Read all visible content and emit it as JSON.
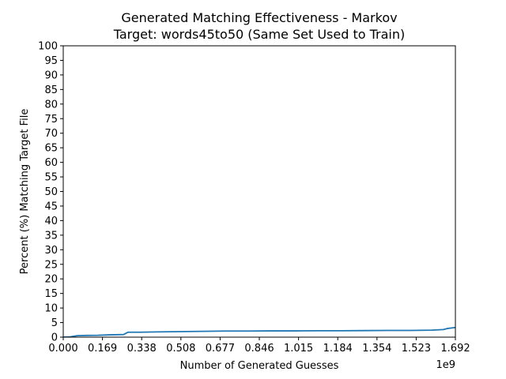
{
  "chart_data": {
    "type": "line",
    "title": "Generated Matching Effectiveness - Markov",
    "subtitle": "Target: words45to50 (Same Set Used to Train)",
    "xlabel": "Number of Generated Guesses",
    "ylabel": "Percent (%) Matching Target File",
    "x_offset_label": "1e9",
    "xlim": [
      0,
      1692000000
    ],
    "ylim": [
      0,
      100
    ],
    "x_tick_values": [
      0,
      169200000,
      338400000,
      507600000,
      676800000,
      846000000,
      1015200000,
      1184400000,
      1353600000,
      1522800000,
      1692000000
    ],
    "x_tick_labels": [
      "0.000",
      "0.169",
      "0.338",
      "0.508",
      "0.677",
      "0.846",
      "1.015",
      "1.184",
      "1.354",
      "1.523",
      "1.692"
    ],
    "y_tick_values": [
      0,
      5,
      10,
      15,
      20,
      25,
      30,
      35,
      40,
      45,
      50,
      55,
      60,
      65,
      70,
      75,
      80,
      85,
      90,
      95,
      100
    ],
    "y_tick_labels": [
      "0",
      "5",
      "10",
      "15",
      "20",
      "25",
      "30",
      "35",
      "40",
      "45",
      "50",
      "55",
      "60",
      "65",
      "70",
      "75",
      "80",
      "85",
      "90",
      "95",
      "100"
    ],
    "grid": false,
    "series": [
      {
        "color": "#1f77b4",
        "x": [
          0,
          30000000,
          60000000,
          100000000,
          150000000,
          200000000,
          260000000,
          280000000,
          330000000,
          400000000,
          500000000,
          600000000,
          700000000,
          800000000,
          900000000,
          1000000000,
          1100000000,
          1200000000,
          1300000000,
          1400000000,
          1500000000,
          1590000000,
          1640000000,
          1660000000,
          1700000000,
          1740000000,
          1760000000,
          1770000000
        ],
        "y": [
          0,
          0.1,
          0.5,
          0.6,
          0.65,
          0.8,
          0.9,
          1.7,
          1.7,
          1.8,
          1.9,
          2.0,
          2.1,
          2.1,
          2.15,
          2.15,
          2.2,
          2.2,
          2.25,
          2.3,
          2.3,
          2.4,
          2.6,
          3.0,
          3.4,
          3.5,
          3.8,
          3.9
        ]
      }
    ]
  }
}
